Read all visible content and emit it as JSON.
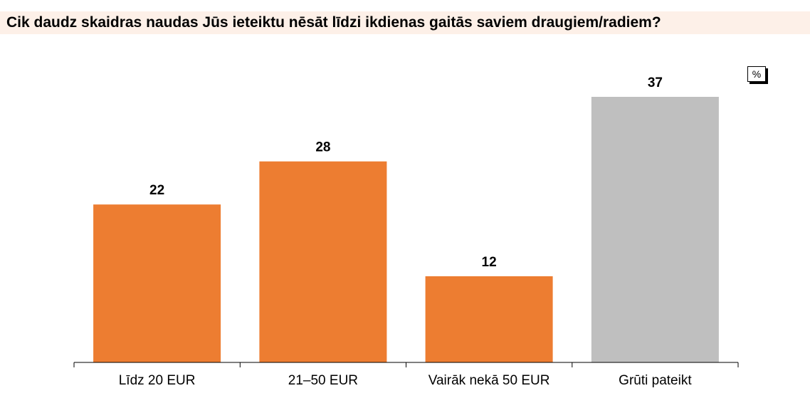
{
  "title": "Cik daudz skaidras naudas Jūs ieteiktu nēsāt līdzi ikdienas gaitās saviem draugiem/radiem?",
  "unit": "%",
  "colors": {
    "primary": "#ed7d31",
    "secondary": "#bfbfbf",
    "title_bg": "#fdf0e8"
  },
  "chart_data": {
    "type": "bar",
    "title": "Cik daudz skaidras naudas Jūs ieteiktu nēsāt līdzi ikdienas gaitās saviem draugiem/radiem?",
    "categories": [
      "Līdz 20 EUR",
      "21–50 EUR",
      "Vairāk nekā 50 EUR",
      "Grūti pateikt"
    ],
    "values": [
      22,
      28,
      12,
      37
    ],
    "data_labels": [
      "22",
      "28",
      "12",
      "37"
    ],
    "bar_colors": [
      "#ed7d31",
      "#ed7d31",
      "#ed7d31",
      "#bfbfbf"
    ],
    "xlabel": "",
    "ylabel": "",
    "ylim": [
      0,
      40
    ],
    "grid": false,
    "legend": "none"
  }
}
